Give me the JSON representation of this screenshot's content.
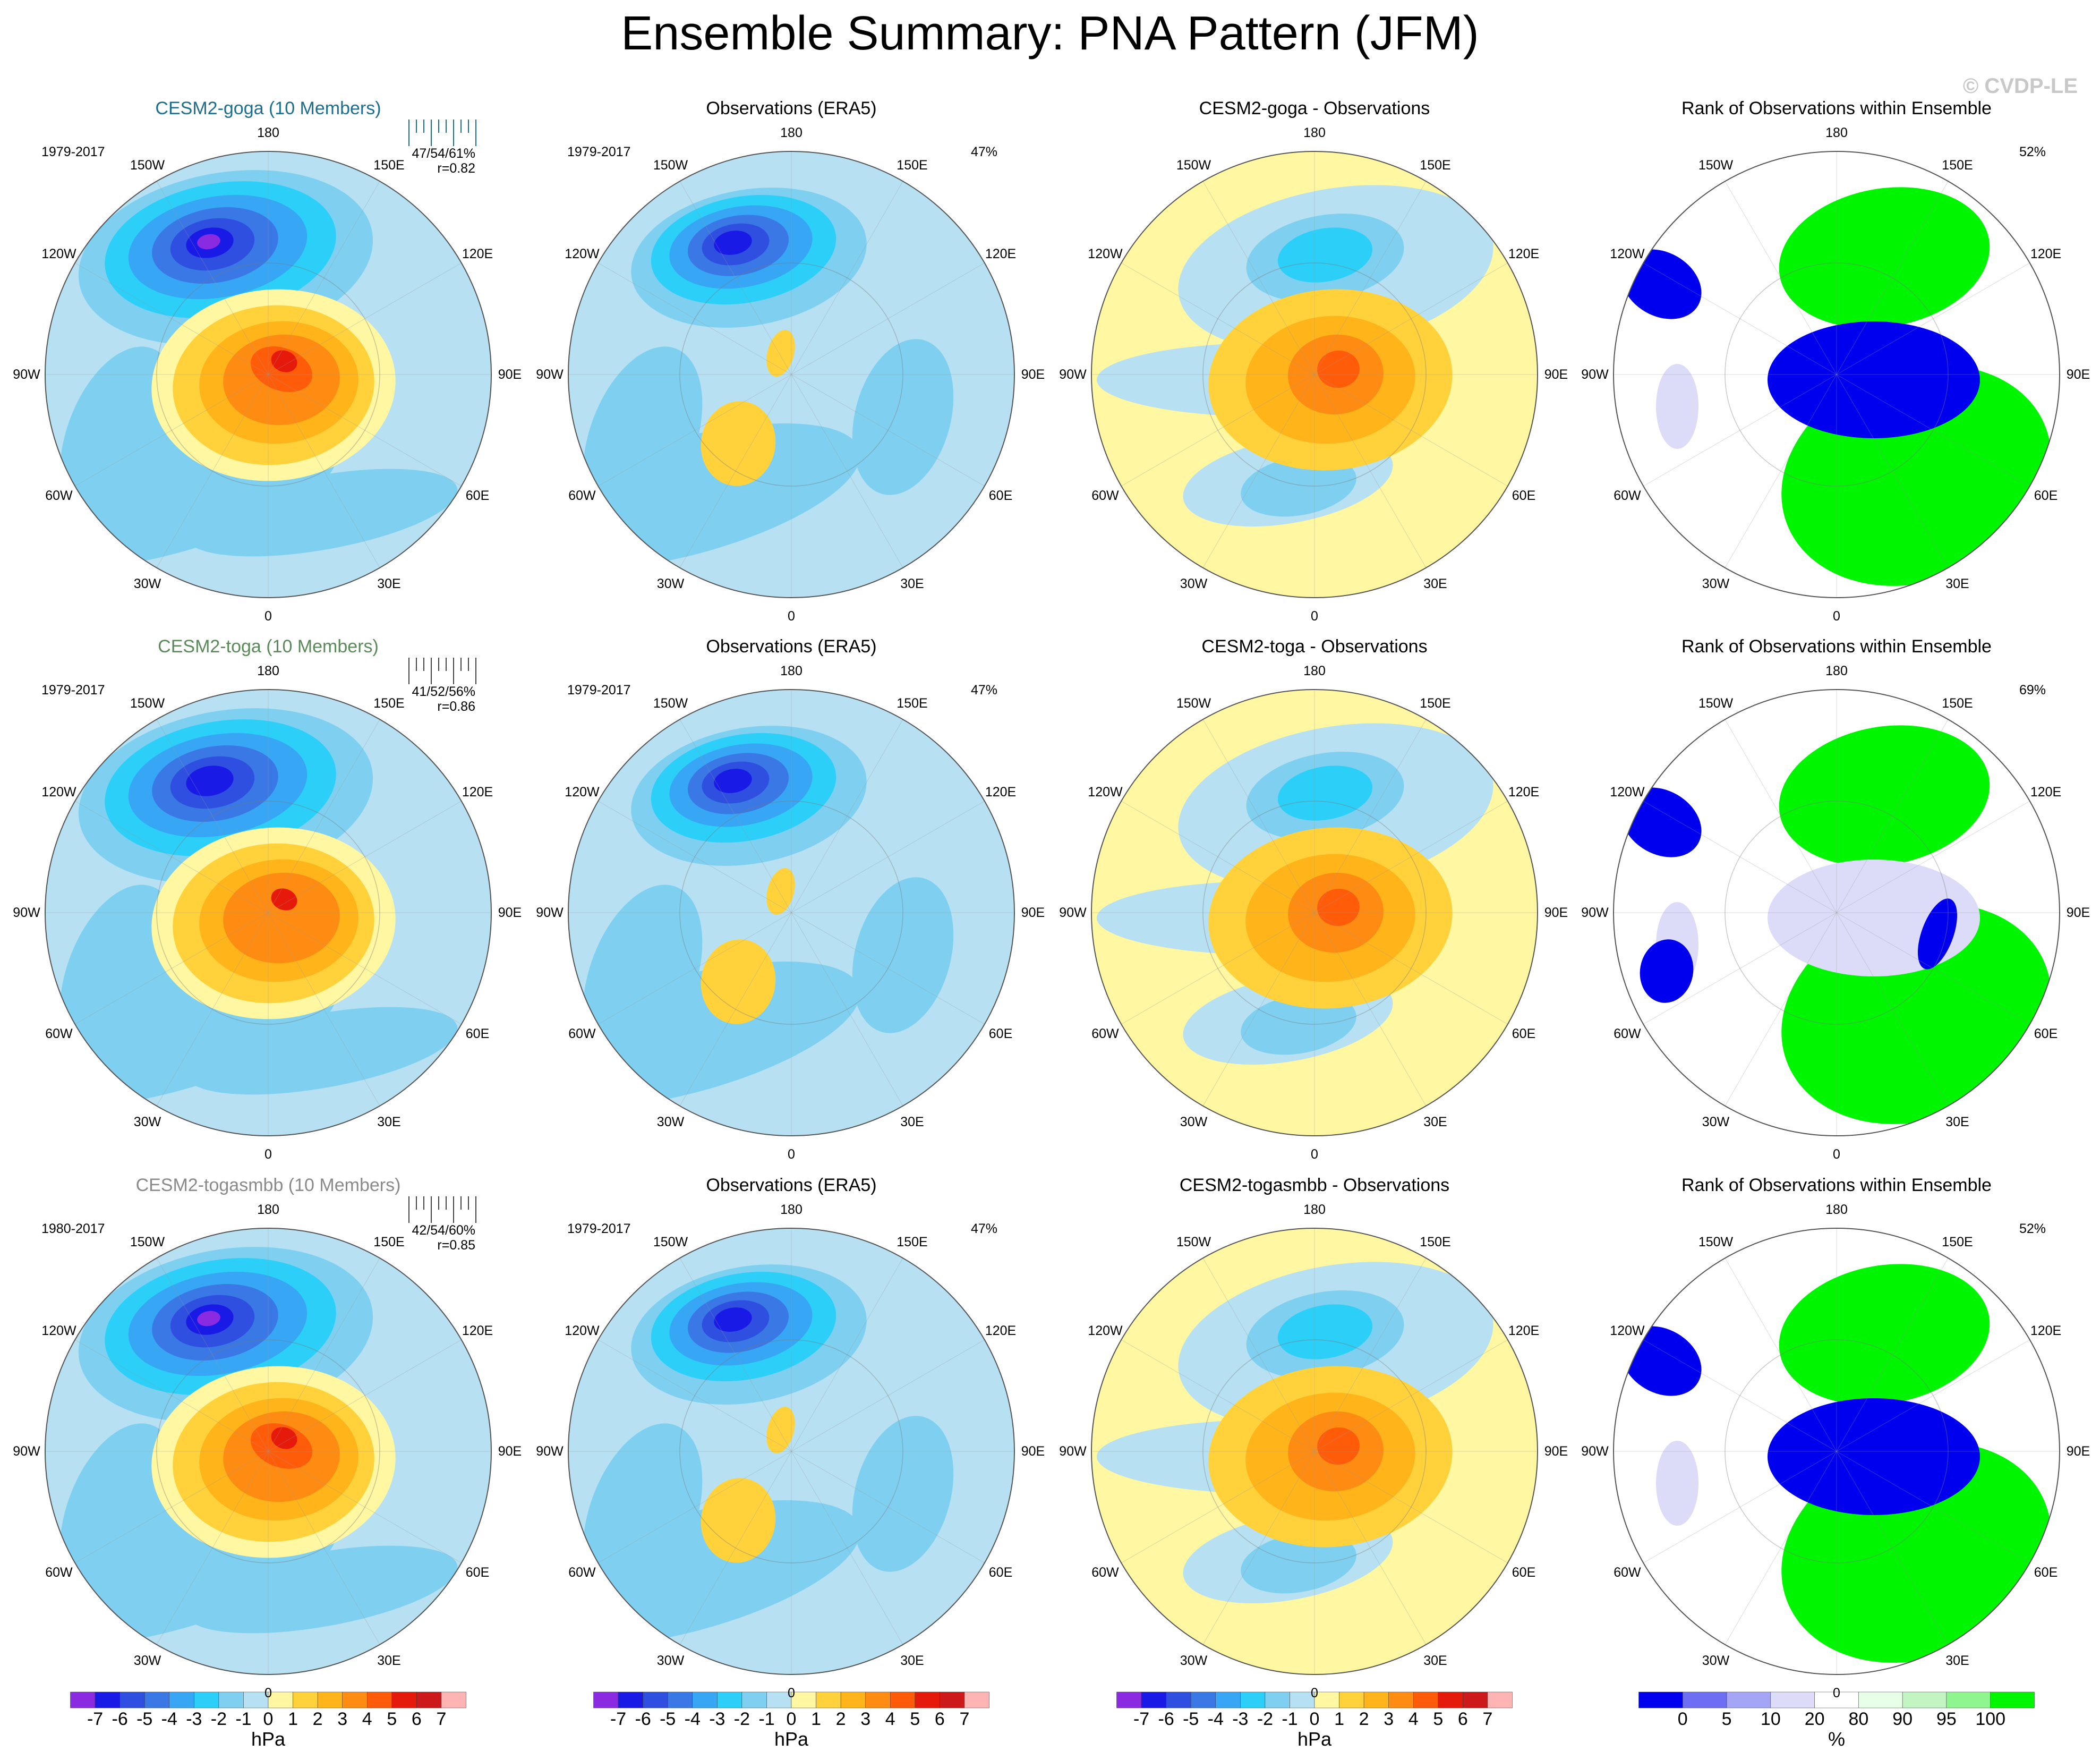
{
  "title": "Ensemble Summary: PNA Pattern (JFM)",
  "watermark": "© CVDP-LE",
  "colors": {
    "rows": [
      "#1c6e8f",
      "#5a8a5a",
      "#8a8a8a"
    ],
    "diverging": [
      "#8a2be2",
      "#1a1ae6",
      "#2f4fe0",
      "#3a78e6",
      "#37a7f5",
      "#2ccff7",
      "#7fd0f0",
      "#b7e1f2",
      "#fff7a1",
      "#ffd23c",
      "#ffb41a",
      "#ff8c12",
      "#ff5c0a",
      "#e61a0a",
      "#cc1a1a",
      "#ffb4b4"
    ],
    "rank": [
      "#0000ee",
      "#6e6ef5",
      "#a5a5f5",
      "#dcdcf8",
      "#ffffff",
      "#e6ffe6",
      "#c3f5c3",
      "#8ff58f",
      "#00f500"
    ]
  },
  "longitude_labels": [
    "180",
    "150E",
    "120E",
    "90E",
    "60E",
    "30E",
    "0",
    "30W",
    "60W",
    "90W",
    "120W",
    "150W"
  ],
  "rows": [
    {
      "model": {
        "title": "CESM2-goga (10 Members)",
        "period": "1979-2017",
        "stats": "47/54/61%",
        "corr": "r=0.82",
        "strength": "strong"
      },
      "obs": {
        "title": "Observations (ERA5)",
        "period": "1979-2017",
        "pct": "47%"
      },
      "diff": {
        "title": "CESM2-goga - Observations",
        "strength": "diff-a"
      },
      "rank": {
        "title": "Rank of Observations within Ensemble",
        "pct": "52%",
        "pattern": "a"
      }
    },
    {
      "model": {
        "title": "CESM2-toga (10 Members)",
        "period": "1979-2017",
        "stats": "41/52/56%",
        "corr": "r=0.86",
        "strength": "medium"
      },
      "obs": {
        "title": "Observations (ERA5)",
        "period": "1979-2017",
        "pct": "47%"
      },
      "diff": {
        "title": "CESM2-toga - Observations",
        "strength": "diff-b"
      },
      "rank": {
        "title": "Rank of Observations within Ensemble",
        "pct": "69%",
        "pattern": "b"
      }
    },
    {
      "model": {
        "title": "CESM2-togasmbb (10 Members)",
        "period": "1980-2017",
        "stats": "42/54/60%",
        "corr": "r=0.85",
        "strength": "strong"
      },
      "obs": {
        "title": "Observations (ERA5)",
        "period": "1979-2017",
        "pct": "47%"
      },
      "diff": {
        "title": "CESM2-togasmbb - Observations",
        "strength": "diff-c"
      },
      "rank": {
        "title": "Rank of Observations within Ensemble",
        "pct": "52%",
        "pattern": "c"
      }
    }
  ],
  "colorbar_diverging": {
    "labels": [
      "-7",
      "-6",
      "-5",
      "-4",
      "-3",
      "-2",
      "-1",
      "0",
      "1",
      "2",
      "3",
      "4",
      "5",
      "6",
      "7"
    ],
    "unit": "hPa"
  },
  "colorbar_rank": {
    "labels": [
      "0",
      "5",
      "10",
      "20",
      "80",
      "90",
      "95",
      "100"
    ],
    "unit": "%"
  }
}
